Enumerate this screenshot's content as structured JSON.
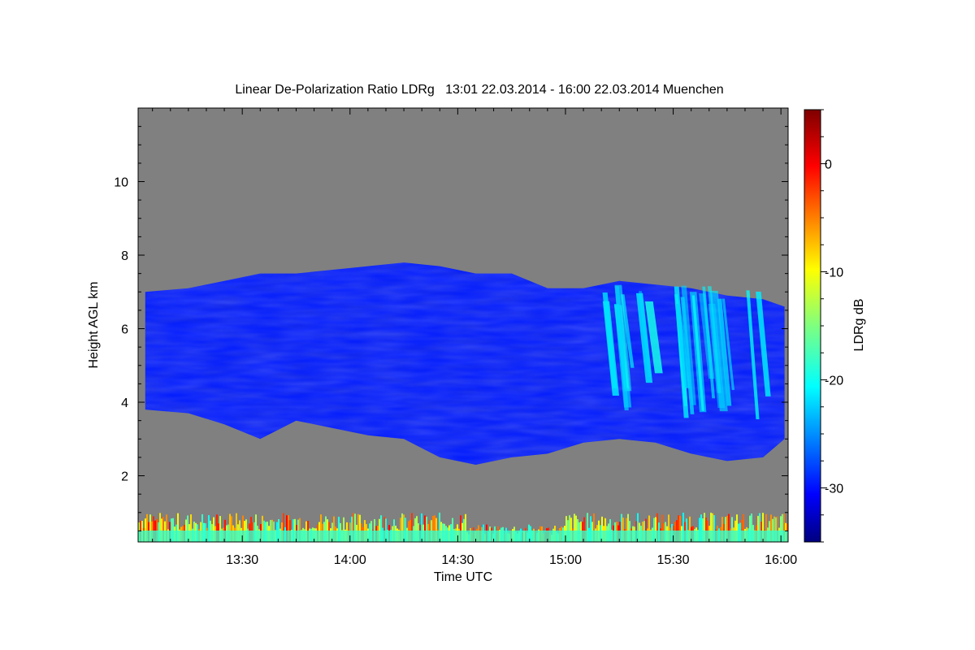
{
  "chart_data": {
    "type": "heatmap",
    "title": "Linear De-Polarization Ratio LDRg   13:01 22.03.2014 - 16:00 22.03.2014 Muenchen",
    "xlabel": "Time UTC",
    "ylabel": "Height AGL km",
    "colorbar_label": "LDRg dB",
    "x_range_minutes": [
      781,
      962
    ],
    "x_ticks": [
      {
        "label": "13:30",
        "minutes": 810
      },
      {
        "label": "14:00",
        "minutes": 840
      },
      {
        "label": "14:30",
        "minutes": 870
      },
      {
        "label": "15:00",
        "minutes": 900
      },
      {
        "label": "15:30",
        "minutes": 930
      },
      {
        "label": "16:00",
        "minutes": 960
      }
    ],
    "ylim": [
      0.2,
      12
    ],
    "y_ticks": [
      {
        "label": "2",
        "value": 2
      },
      {
        "label": "4",
        "value": 4
      },
      {
        "label": "6",
        "value": 6
      },
      {
        "label": "8",
        "value": 8
      },
      {
        "label": "10",
        "value": 10
      }
    ],
    "colorbar_range": [
      -35,
      5
    ],
    "colorbar_ticks": [
      {
        "label": "0",
        "value": 0
      },
      {
        "label": "-10",
        "value": -10
      },
      {
        "label": "-20",
        "value": -20
      },
      {
        "label": "-30",
        "value": -30
      }
    ],
    "colormap": "jet",
    "missing_color": "#808080",
    "cloud_layer": {
      "ldr_db_typical": -29,
      "time_minutes": [
        783,
        795,
        805,
        815,
        825,
        835,
        845,
        855,
        865,
        875,
        885,
        895,
        905,
        915,
        925,
        935,
        945,
        955,
        961
      ],
      "top_km": [
        7.0,
        7.1,
        7.3,
        7.5,
        7.5,
        7.6,
        7.7,
        7.8,
        7.7,
        7.5,
        7.5,
        7.1,
        7.1,
        7.3,
        7.2,
        7.1,
        6.9,
        6.8,
        6.6
      ],
      "base_km": [
        3.8,
        3.7,
        3.4,
        3.0,
        3.5,
        3.3,
        3.1,
        3.0,
        2.5,
        2.3,
        2.5,
        2.6,
        2.9,
        3.0,
        2.9,
        2.6,
        2.4,
        2.5,
        3.0
      ]
    },
    "enhanced_region": {
      "ldr_db_typical": -20,
      "time_minutes": [
        910,
        930,
        945,
        955
      ],
      "height_km": [
        3.5,
        7.2
      ]
    },
    "surface_layer": {
      "top_km": 1.0,
      "ldr_db_range": [
        -20,
        0
      ]
    }
  }
}
